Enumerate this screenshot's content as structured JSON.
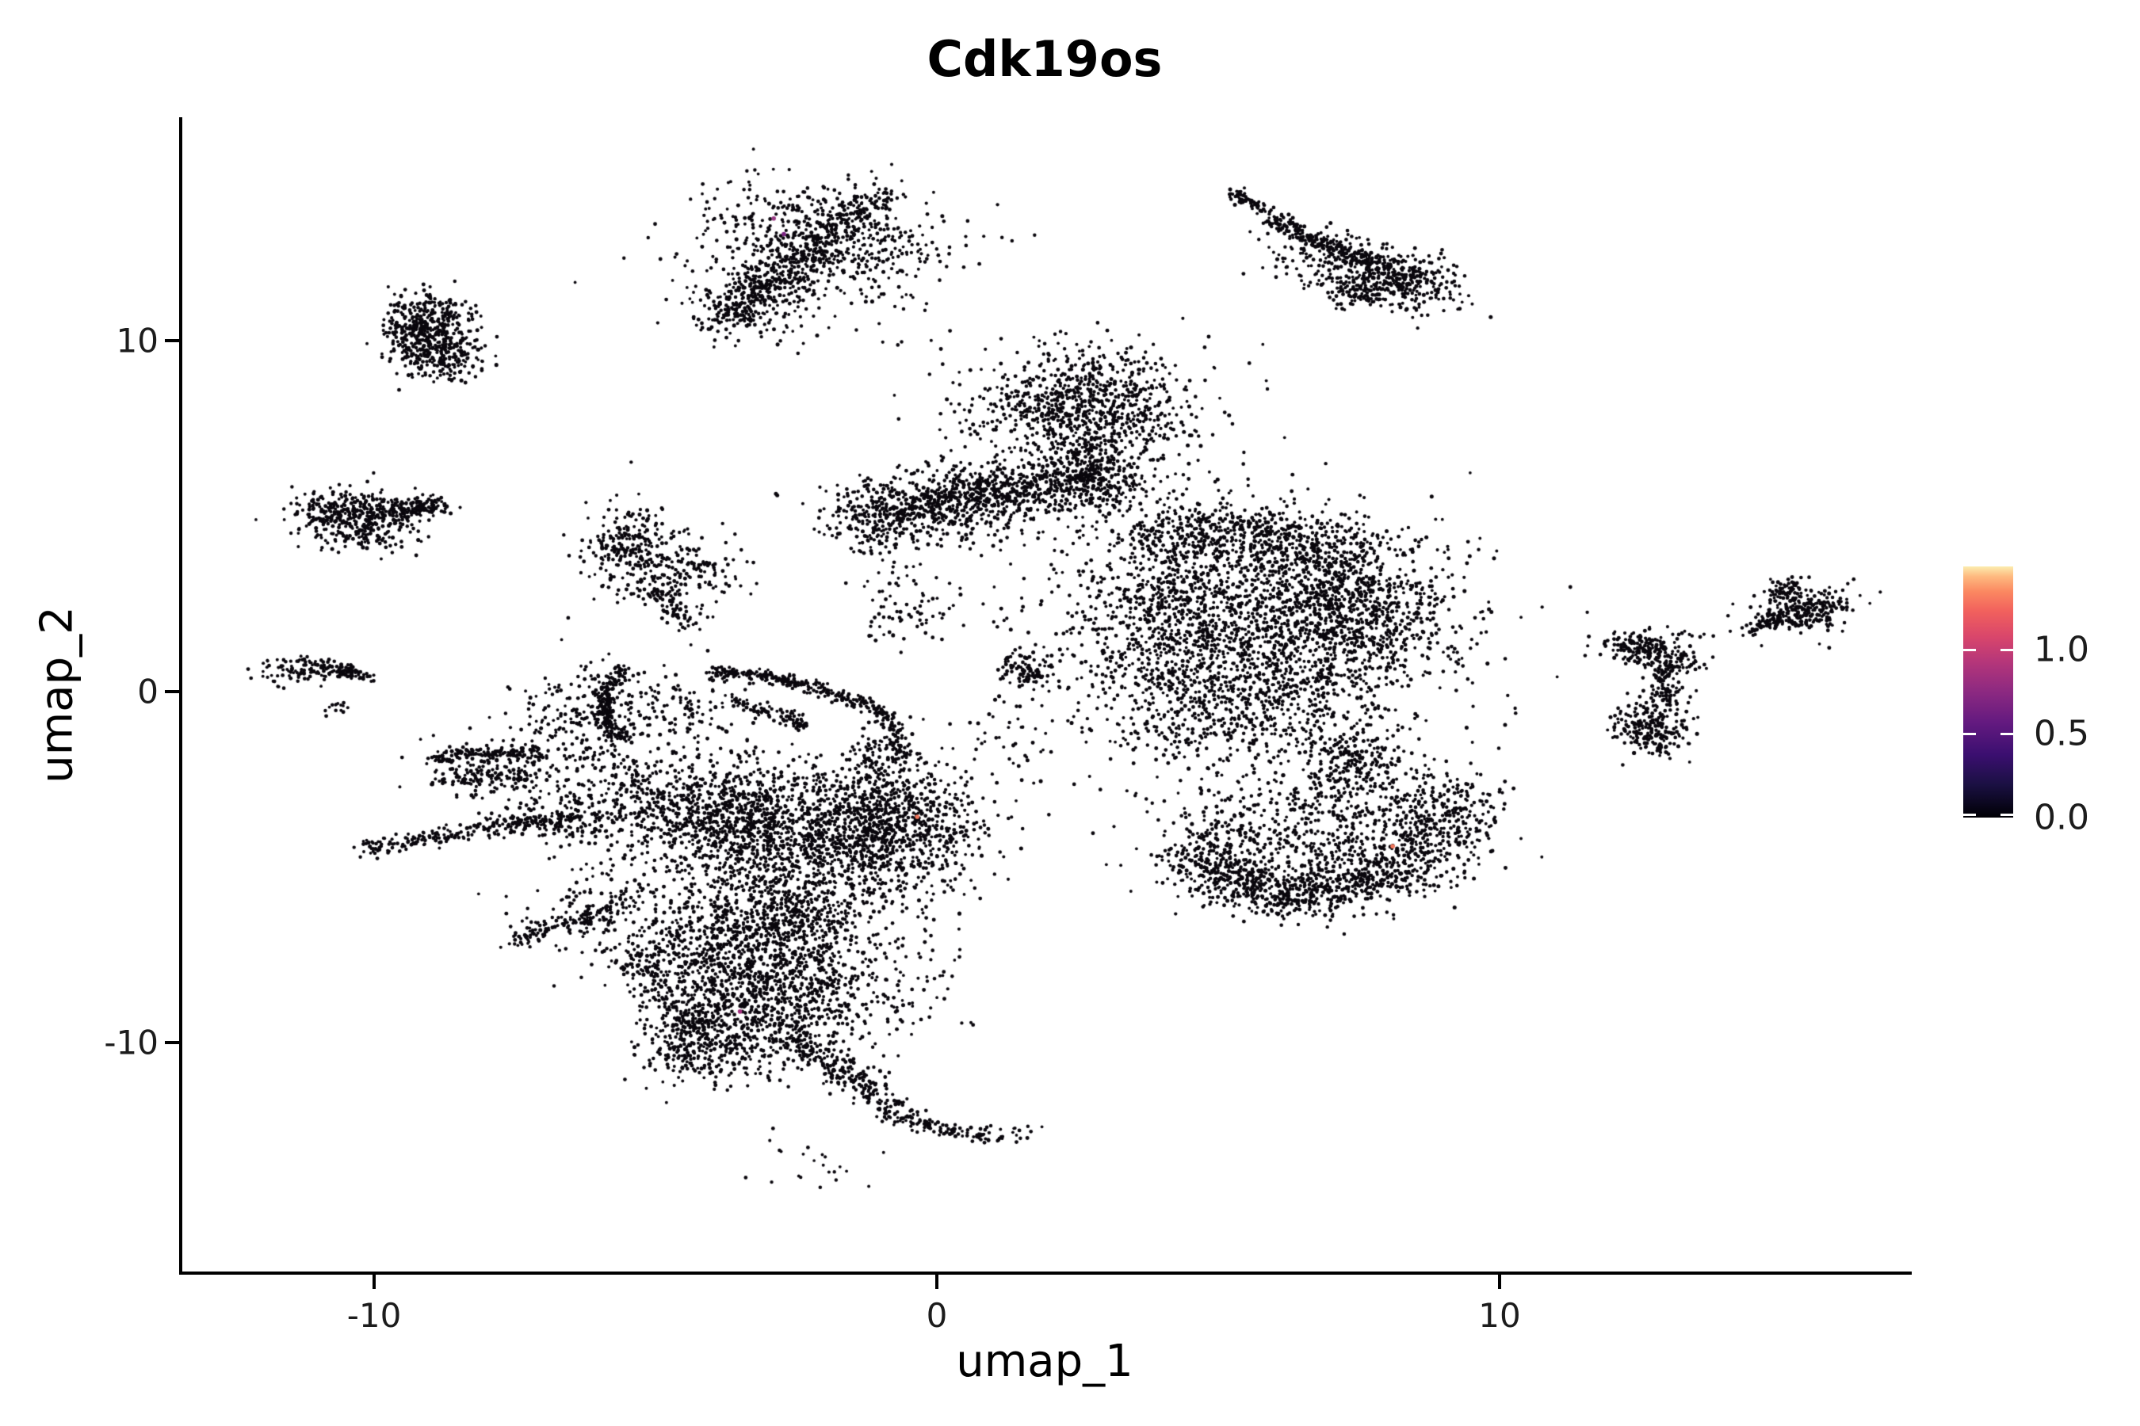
{
  "chart_data": {
    "type": "scatter",
    "variant": "umap-feature-plot",
    "title": "Cdk19os",
    "xlabel": "umap_1",
    "ylabel": "umap_2",
    "x_axis": {
      "label": "umap_1",
      "tick_labels": [
        "-10",
        "0",
        "10"
      ],
      "tick_values": [
        -10,
        0,
        10
      ],
      "range": [
        -13.44,
        17.27
      ]
    },
    "y_axis": {
      "label": "umap_2",
      "tick_labels": [
        "10",
        "0",
        "-10"
      ],
      "tick_values": [
        10,
        0,
        -10
      ],
      "range": [
        -16.72,
        16.51
      ]
    },
    "grid": false,
    "legend_position": "right",
    "point_style": {
      "color": "#0a070d",
      "radius": 2.2
    },
    "colorbar": {
      "tick_labels": [
        "1.0",
        "0.5",
        "0.0"
      ],
      "tick_values": [
        1.0,
        0.5,
        0.0
      ],
      "vmin": 0.0,
      "vmax": 1.5,
      "colormap": "magma",
      "stops": [
        [
          0.0,
          "#000004"
        ],
        [
          0.13,
          "#1a1042"
        ],
        [
          0.25,
          "#3b0f70"
        ],
        [
          0.38,
          "#641a80"
        ],
        [
          0.5,
          "#8c2981"
        ],
        [
          0.62,
          "#b5367a"
        ],
        [
          0.72,
          "#d9466b"
        ],
        [
          0.82,
          "#f1605d"
        ],
        [
          0.9,
          "#fb8861"
        ],
        [
          0.96,
          "#feb97f"
        ],
        [
          1.0,
          "#fcecae"
        ]
      ]
    },
    "highlight_points": [
      {
        "x": -2.9,
        "y": 13.6,
        "color": "#9a3a85"
      },
      {
        "x": -2.72,
        "y": 13.15,
        "color": "#7c2482"
      },
      {
        "x": -0.35,
        "y": -3.6,
        "color": "#f3765b"
      },
      {
        "x": -3.5,
        "y": -9.2,
        "color": "#a2317e"
      },
      {
        "x": 8.1,
        "y": -4.45,
        "color": "#f3765b"
      }
    ],
    "clusters": [
      {
        "name": "top-middle-diagonal",
        "parts": [
          {
            "t": "f",
            "x1": -3.9,
            "y1": 10.5,
            "cx": -2.6,
            "cy": 12.3,
            "x2": -0.9,
            "y2": 14.35,
            "w": 0.22,
            "n": 420
          },
          {
            "t": "b",
            "cx": -2.1,
            "cy": 13.0,
            "sx": 1.0,
            "sy": 0.75,
            "rot": -25,
            "n": 480
          },
          {
            "t": "b",
            "cx": -3.25,
            "cy": 11.25,
            "sx": 0.55,
            "sy": 0.5,
            "rot": 0,
            "n": 170
          },
          {
            "t": "b",
            "cx": -2.3,
            "cy": 12.5,
            "sx": 1.5,
            "sy": 1.2,
            "rot": 0,
            "n": 150
          }
        ]
      },
      {
        "name": "top-right-comet",
        "parts": [
          {
            "t": "f",
            "x1": 5.95,
            "y1": 13.55,
            "cx": 6.8,
            "cy": 12.9,
            "x2": 8.0,
            "y2": 12.15,
            "w": 0.12,
            "n": 240
          },
          {
            "t": "b",
            "cx": 8.25,
            "cy": 11.85,
            "sx": 0.5,
            "sy": 0.4,
            "rot": -30,
            "n": 300
          },
          {
            "t": "b",
            "cx": 7.2,
            "cy": 12.1,
            "sx": 0.55,
            "sy": 0.45,
            "rot": 0,
            "n": 130
          },
          {
            "t": "b",
            "cx": 7.5,
            "cy": 11.45,
            "sx": 0.22,
            "sy": 0.18,
            "rot": 0,
            "n": 70
          },
          {
            "t": "f",
            "x1": 5.25,
            "y1": 14.35,
            "cx": 5.55,
            "cy": 14.1,
            "x2": 5.9,
            "y2": 13.8,
            "w": 0.08,
            "n": 70
          },
          {
            "t": "b",
            "cx": 6.6,
            "cy": 12.85,
            "sx": 0.5,
            "sy": 0.4,
            "rot": 0,
            "n": 50
          }
        ]
      },
      {
        "name": "left-crescent",
        "parts": [
          {
            "t": "b",
            "cx": -9.05,
            "cy": 10.65,
            "sx": 0.4,
            "sy": 0.42,
            "rot": 0,
            "n": 250
          },
          {
            "t": "b",
            "cx": -9.2,
            "cy": 10.05,
            "sx": 0.33,
            "sy": 0.45,
            "rot": 0,
            "n": 190
          },
          {
            "t": "b",
            "cx": -8.6,
            "cy": 9.6,
            "sx": 0.34,
            "sy": 0.3,
            "rot": 0,
            "n": 150
          }
        ]
      },
      {
        "name": "left-oval",
        "parts": [
          {
            "t": "b",
            "cx": -10.3,
            "cy": 5.05,
            "sx": 0.55,
            "sy": 0.38,
            "rot": 0,
            "n": 400
          },
          {
            "t": "f",
            "x1": -9.6,
            "y1": 5.2,
            "cx": -9.2,
            "cy": 5.35,
            "x2": -8.78,
            "y2": 5.28,
            "w": 0.15,
            "n": 120
          },
          {
            "t": "b",
            "cx": -10.1,
            "cy": 4.4,
            "sx": 0.5,
            "sy": 0.24,
            "rot": 0,
            "n": 40
          }
        ]
      },
      {
        "name": "mid-left-sparse",
        "parts": [
          {
            "t": "b",
            "cx": -5.45,
            "cy": 4.15,
            "sx": 0.4,
            "sy": 0.6,
            "rot": 0,
            "n": 230
          },
          {
            "t": "b",
            "cx": -4.6,
            "cy": 3.5,
            "sx": 0.55,
            "sy": 0.5,
            "rot": 0,
            "n": 130
          },
          {
            "t": "f",
            "x1": -5.0,
            "y1": 2.9,
            "cx": -4.7,
            "cy": 2.5,
            "x2": -4.35,
            "y2": 1.95,
            "w": 0.18,
            "n": 75
          },
          {
            "t": "b",
            "cx": -3.85,
            "cy": 3.3,
            "sx": 0.3,
            "sy": 0.3,
            "rot": 0,
            "n": 25
          }
        ]
      },
      {
        "name": "far-left-streak",
        "parts": [
          {
            "t": "b",
            "cx": -11.25,
            "cy": 0.62,
            "sx": 0.4,
            "sy": 0.2,
            "rot": 0,
            "n": 110
          },
          {
            "t": "f",
            "x1": -10.8,
            "y1": 0.55,
            "cx": -10.5,
            "cy": 0.62,
            "x2": -10.12,
            "y2": 0.42,
            "w": 0.1,
            "n": 65
          },
          {
            "t": "b",
            "cx": -10.65,
            "cy": -0.38,
            "sx": 0.12,
            "sy": 0.16,
            "rot": 0,
            "n": 14
          }
        ]
      },
      {
        "name": "central-head",
        "parts": [
          {
            "t": "b",
            "cx": 2.65,
            "cy": 8.1,
            "sx": 0.95,
            "sy": 0.8,
            "rot": 0,
            "n": 760
          },
          {
            "t": "b",
            "cx": 2.5,
            "cy": 8.3,
            "sx": 1.4,
            "sy": 1.1,
            "rot": 0,
            "n": 170
          },
          {
            "t": "f",
            "x1": 2.8,
            "y1": 7.0,
            "cx": 2.85,
            "cy": 6.4,
            "x2": 3.0,
            "y2": 5.75,
            "w": 0.3,
            "n": 150
          }
        ]
      },
      {
        "name": "central-band",
        "parts": [
          {
            "t": "f",
            "x1": -1.35,
            "y1": 5.0,
            "cx": 1.0,
            "cy": 6.15,
            "x2": 3.3,
            "y2": 5.9,
            "w": 0.42,
            "n": 880
          },
          {
            "t": "b",
            "cx": 0.2,
            "cy": 5.25,
            "sx": 1.0,
            "sy": 0.55,
            "rot": 0,
            "n": 300
          },
          {
            "t": "b",
            "cx": -1.2,
            "cy": 4.6,
            "sx": 0.35,
            "sy": 0.4,
            "rot": 0,
            "n": 60
          },
          {
            "t": "b",
            "cx": -0.5,
            "cy": 2.5,
            "sx": 0.45,
            "sy": 0.65,
            "rot": 0,
            "n": 80
          }
        ]
      },
      {
        "name": "central-body",
        "parts": [
          {
            "t": "b",
            "cx": 5.6,
            "cy": 1.9,
            "sx": 1.6,
            "sy": 1.5,
            "rot": 0,
            "n": 1450
          },
          {
            "t": "f",
            "x1": 3.6,
            "y1": 4.5,
            "cx": 5.5,
            "cy": 4.95,
            "x2": 7.4,
            "y2": 3.9,
            "w": 0.45,
            "n": 520
          },
          {
            "t": "b",
            "cx": 7.4,
            "cy": 2.6,
            "sx": 0.85,
            "sy": 1.1,
            "rot": 15,
            "n": 620
          },
          {
            "t": "b",
            "cx": 4.0,
            "cy": 2.6,
            "sx": 0.7,
            "sy": 1.2,
            "rot": 0,
            "n": 360
          },
          {
            "t": "b",
            "cx": 5.3,
            "cy": -0.5,
            "sx": 1.2,
            "sy": 0.9,
            "rot": 0,
            "n": 500
          },
          {
            "t": "b",
            "cx": 7.45,
            "cy": -2.1,
            "sx": 0.5,
            "sy": 0.65,
            "rot": 0,
            "n": 270
          },
          {
            "t": "b",
            "cx": 5.6,
            "cy": 1.5,
            "sx": 2.2,
            "sy": 2.2,
            "rot": 0,
            "n": 240
          },
          {
            "t": "b",
            "cx": 1.55,
            "cy": 0.6,
            "sx": 0.3,
            "sy": 0.28,
            "rot": 0,
            "n": 90
          },
          {
            "t": "b",
            "cx": -0.95,
            "cy": -1.7,
            "sx": 0.3,
            "sy": 0.3,
            "rot": 0,
            "n": 70
          },
          {
            "t": "b",
            "cx": 1.2,
            "cy": -1.2,
            "sx": 0.5,
            "sy": 0.9,
            "rot": 0,
            "n": 50
          }
        ]
      },
      {
        "name": "right-y-shape",
        "parts": [
          {
            "t": "b",
            "cx": 12.55,
            "cy": 1.25,
            "sx": 0.38,
            "sy": 0.25,
            "rot": 0,
            "n": 170
          },
          {
            "t": "b",
            "cx": 13.15,
            "cy": 0.9,
            "sx": 0.25,
            "sy": 0.2,
            "rot": 0,
            "n": 80
          },
          {
            "t": "f",
            "x1": 12.85,
            "y1": 0.6,
            "cx": 12.9,
            "cy": 0.2,
            "x2": 12.95,
            "y2": -0.3,
            "w": 0.12,
            "n": 70
          },
          {
            "t": "b",
            "cx": 12.75,
            "cy": -0.95,
            "sx": 0.33,
            "sy": 0.45,
            "rot": 0,
            "n": 230
          },
          {
            "t": "b",
            "cx": 12.9,
            "cy": -1.6,
            "sx": 0.08,
            "sy": 0.08,
            "rot": 0,
            "n": 8
          }
        ]
      },
      {
        "name": "right-diagonal-streak",
        "parts": [
          {
            "t": "f",
            "x1": 14.45,
            "y1": 1.75,
            "cx": 14.8,
            "cy": 1.95,
            "x2": 15.12,
            "y2": 2.2,
            "w": 0.07,
            "n": 40
          },
          {
            "t": "b",
            "cx": 15.38,
            "cy": 2.3,
            "sx": 0.5,
            "sy": 0.28,
            "rot": 25,
            "n": 270
          },
          {
            "t": "b",
            "cx": 15.1,
            "cy": 2.92,
            "sx": 0.2,
            "sy": 0.18,
            "rot": 0,
            "n": 65
          }
        ]
      },
      {
        "name": "bottom-right-leaf",
        "parts": [
          {
            "t": "f",
            "x1": 4.55,
            "y1": -4.9,
            "cx": 6.3,
            "cy": -6.75,
            "x2": 8.3,
            "y2": -4.9,
            "w": 0.4,
            "n": 720
          },
          {
            "t": "b",
            "cx": 8.85,
            "cy": -3.95,
            "sx": 0.55,
            "sy": 0.85,
            "rot": -20,
            "n": 400
          },
          {
            "t": "b",
            "cx": 6.6,
            "cy": -4.5,
            "sx": 1.35,
            "sy": 0.8,
            "rot": 0,
            "n": 360
          },
          {
            "t": "b",
            "cx": 6.2,
            "cy": -3.4,
            "sx": 1.3,
            "sy": 0.5,
            "rot": 0,
            "n": 130
          },
          {
            "t": "b",
            "cx": 4.85,
            "cy": -4.6,
            "sx": 0.4,
            "sy": 0.4,
            "rot": 0,
            "n": 90
          }
        ]
      },
      {
        "name": "lower-left-complex",
        "parts": [
          {
            "t": "f",
            "x1": -10.25,
            "y1": -4.55,
            "cx": -8.6,
            "cy": -4.05,
            "x2": -6.5,
            "y2": -3.6,
            "w": 0.14,
            "n": 230
          },
          {
            "t": "b",
            "cx": -6.75,
            "cy": -3.7,
            "sx": 0.5,
            "sy": 0.32,
            "rot": 0,
            "n": 110
          },
          {
            "t": "f",
            "x1": -9.0,
            "y1": -1.95,
            "cx": -8.05,
            "cy": -1.62,
            "x2": -7.0,
            "y2": -1.85,
            "w": 0.1,
            "n": 120
          },
          {
            "t": "f",
            "x1": -8.8,
            "y1": -2.55,
            "cx": -7.9,
            "cy": -2.3,
            "x2": -7.1,
            "y2": -2.55,
            "w": 0.12,
            "n": 90
          },
          {
            "t": "b",
            "cx": -7.9,
            "cy": -2.15,
            "sx": 0.7,
            "sy": 0.5,
            "rot": 0,
            "n": 120
          },
          {
            "t": "f",
            "x1": -5.55,
            "y1": 0.7,
            "cx": -6.3,
            "cy": -0.35,
            "x2": -5.6,
            "y2": -1.45,
            "w": 0.1,
            "n": 190
          },
          {
            "t": "f",
            "x1": -4.05,
            "y1": 0.55,
            "cx": -2.6,
            "cy": 0.55,
            "x2": -0.95,
            "y2": -0.6,
            "w": 0.1,
            "n": 270
          },
          {
            "t": "f",
            "x1": -0.95,
            "y1": -0.6,
            "cx": -0.72,
            "cy": -1.25,
            "x2": -0.55,
            "y2": -1.9,
            "w": 0.1,
            "n": 65
          },
          {
            "t": "f",
            "x1": -3.6,
            "y1": -0.3,
            "cx": -2.9,
            "cy": -0.58,
            "x2": -2.3,
            "y2": -0.98,
            "w": 0.1,
            "n": 85
          },
          {
            "t": "b",
            "cx": -6.3,
            "cy": -0.8,
            "sx": 0.6,
            "sy": 0.8,
            "rot": 0,
            "n": 220
          },
          {
            "t": "b",
            "cx": -4.7,
            "cy": -0.6,
            "sx": 0.9,
            "sy": 0.6,
            "rot": 0,
            "n": 150
          },
          {
            "t": "b",
            "cx": -2.4,
            "cy": -4.3,
            "sx": 1.35,
            "sy": 1.15,
            "rot": 0,
            "n": 1600
          },
          {
            "t": "b",
            "cx": -0.7,
            "cy": -3.6,
            "sx": 0.7,
            "sy": 0.85,
            "rot": 0,
            "n": 520
          },
          {
            "t": "b",
            "cx": -4.0,
            "cy": -3.5,
            "sx": 0.85,
            "sy": 0.7,
            "rot": 0,
            "n": 430
          },
          {
            "t": "b",
            "cx": -5.6,
            "cy": -3.0,
            "sx": 1.0,
            "sy": 0.8,
            "rot": 0,
            "n": 250
          },
          {
            "t": "f",
            "x1": -5.3,
            "y1": -5.9,
            "cx": -6.4,
            "cy": -6.55,
            "x2": -7.55,
            "y2": -7.25,
            "w": 0.14,
            "n": 140
          },
          {
            "t": "b",
            "cx": -6.3,
            "cy": -6.3,
            "sx": 0.7,
            "sy": 0.5,
            "rot": 0,
            "n": 80
          },
          {
            "t": "b",
            "cx": -2.6,
            "cy": -6.35,
            "sx": 0.7,
            "sy": 0.5,
            "rot": 0,
            "n": 240
          },
          {
            "t": "b",
            "cx": -3.8,
            "cy": -7.5,
            "sx": 1.05,
            "sy": 0.8,
            "rot": 0,
            "n": 680
          },
          {
            "t": "b",
            "cx": -2.9,
            "cy": -9.0,
            "sx": 0.85,
            "sy": 0.8,
            "rot": 0,
            "n": 580
          },
          {
            "t": "b",
            "cx": -4.15,
            "cy": -10.2,
            "sx": 0.6,
            "sy": 0.55,
            "rot": 0,
            "n": 310
          },
          {
            "t": "f",
            "x1": -2.6,
            "y1": -9.9,
            "cx": -1.65,
            "cy": -10.9,
            "x2": -0.7,
            "y2": -12.05,
            "w": 0.22,
            "n": 250
          },
          {
            "t": "f",
            "x1": -0.72,
            "y1": -12.25,
            "cx": 0.1,
            "cy": -12.6,
            "x2": 1.0,
            "y2": -12.8,
            "w": 0.12,
            "n": 105
          },
          {
            "t": "b",
            "cx": 1.35,
            "cy": -12.7,
            "sx": 0.25,
            "sy": 0.15,
            "rot": 0,
            "n": 16
          },
          {
            "t": "b",
            "cx": -1.6,
            "cy": -8.3,
            "sx": 0.9,
            "sy": 1.0,
            "rot": 0,
            "n": 230
          },
          {
            "t": "f",
            "x1": -5.3,
            "y1": -7.2,
            "cx": -4.9,
            "cy": -8.6,
            "x2": -4.3,
            "y2": -10.0,
            "w": 0.25,
            "n": 170
          },
          {
            "t": "b",
            "cx": -2.3,
            "cy": -13.4,
            "sx": 0.7,
            "sy": 0.5,
            "rot": 0,
            "n": 22
          }
        ]
      }
    ]
  }
}
